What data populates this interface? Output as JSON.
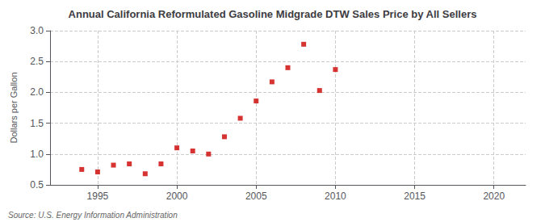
{
  "chart_data": {
    "type": "scatter",
    "title": "Annual California Reformulated Gasoline Midgrade DTW Sales Price by All Sellers",
    "ylabel": "Dollars per Gallon",
    "annotations": [
      "Source: U.S. Energy Information Administration"
    ],
    "x": [
      1994,
      1995,
      1996,
      1997,
      1998,
      1999,
      2000,
      2001,
      2002,
      2003,
      2004,
      2005,
      2006,
      2007,
      2008,
      2009,
      2010
    ],
    "values": [
      0.75,
      0.71,
      0.82,
      0.84,
      0.68,
      0.84,
      1.1,
      1.05,
      1.0,
      1.28,
      1.58,
      1.86,
      2.17,
      2.4,
      2.78,
      2.03,
      2.37
    ],
    "color": "#cc0000",
    "marker": "square",
    "xlim": [
      1992,
      2022
    ],
    "xticks": [
      1995,
      2000,
      2005,
      2010,
      2015,
      2020
    ],
    "ylim": [
      0.5,
      3.0
    ],
    "yticks": [
      0.5,
      {
        "value": 1.0,
        "label": "1.0"
      },
      1.5,
      {
        "value": 2.0,
        "label": "2.0"
      },
      2.5,
      {
        "value": 3.0,
        "label": "3.0"
      }
    ],
    "grid": true
  }
}
